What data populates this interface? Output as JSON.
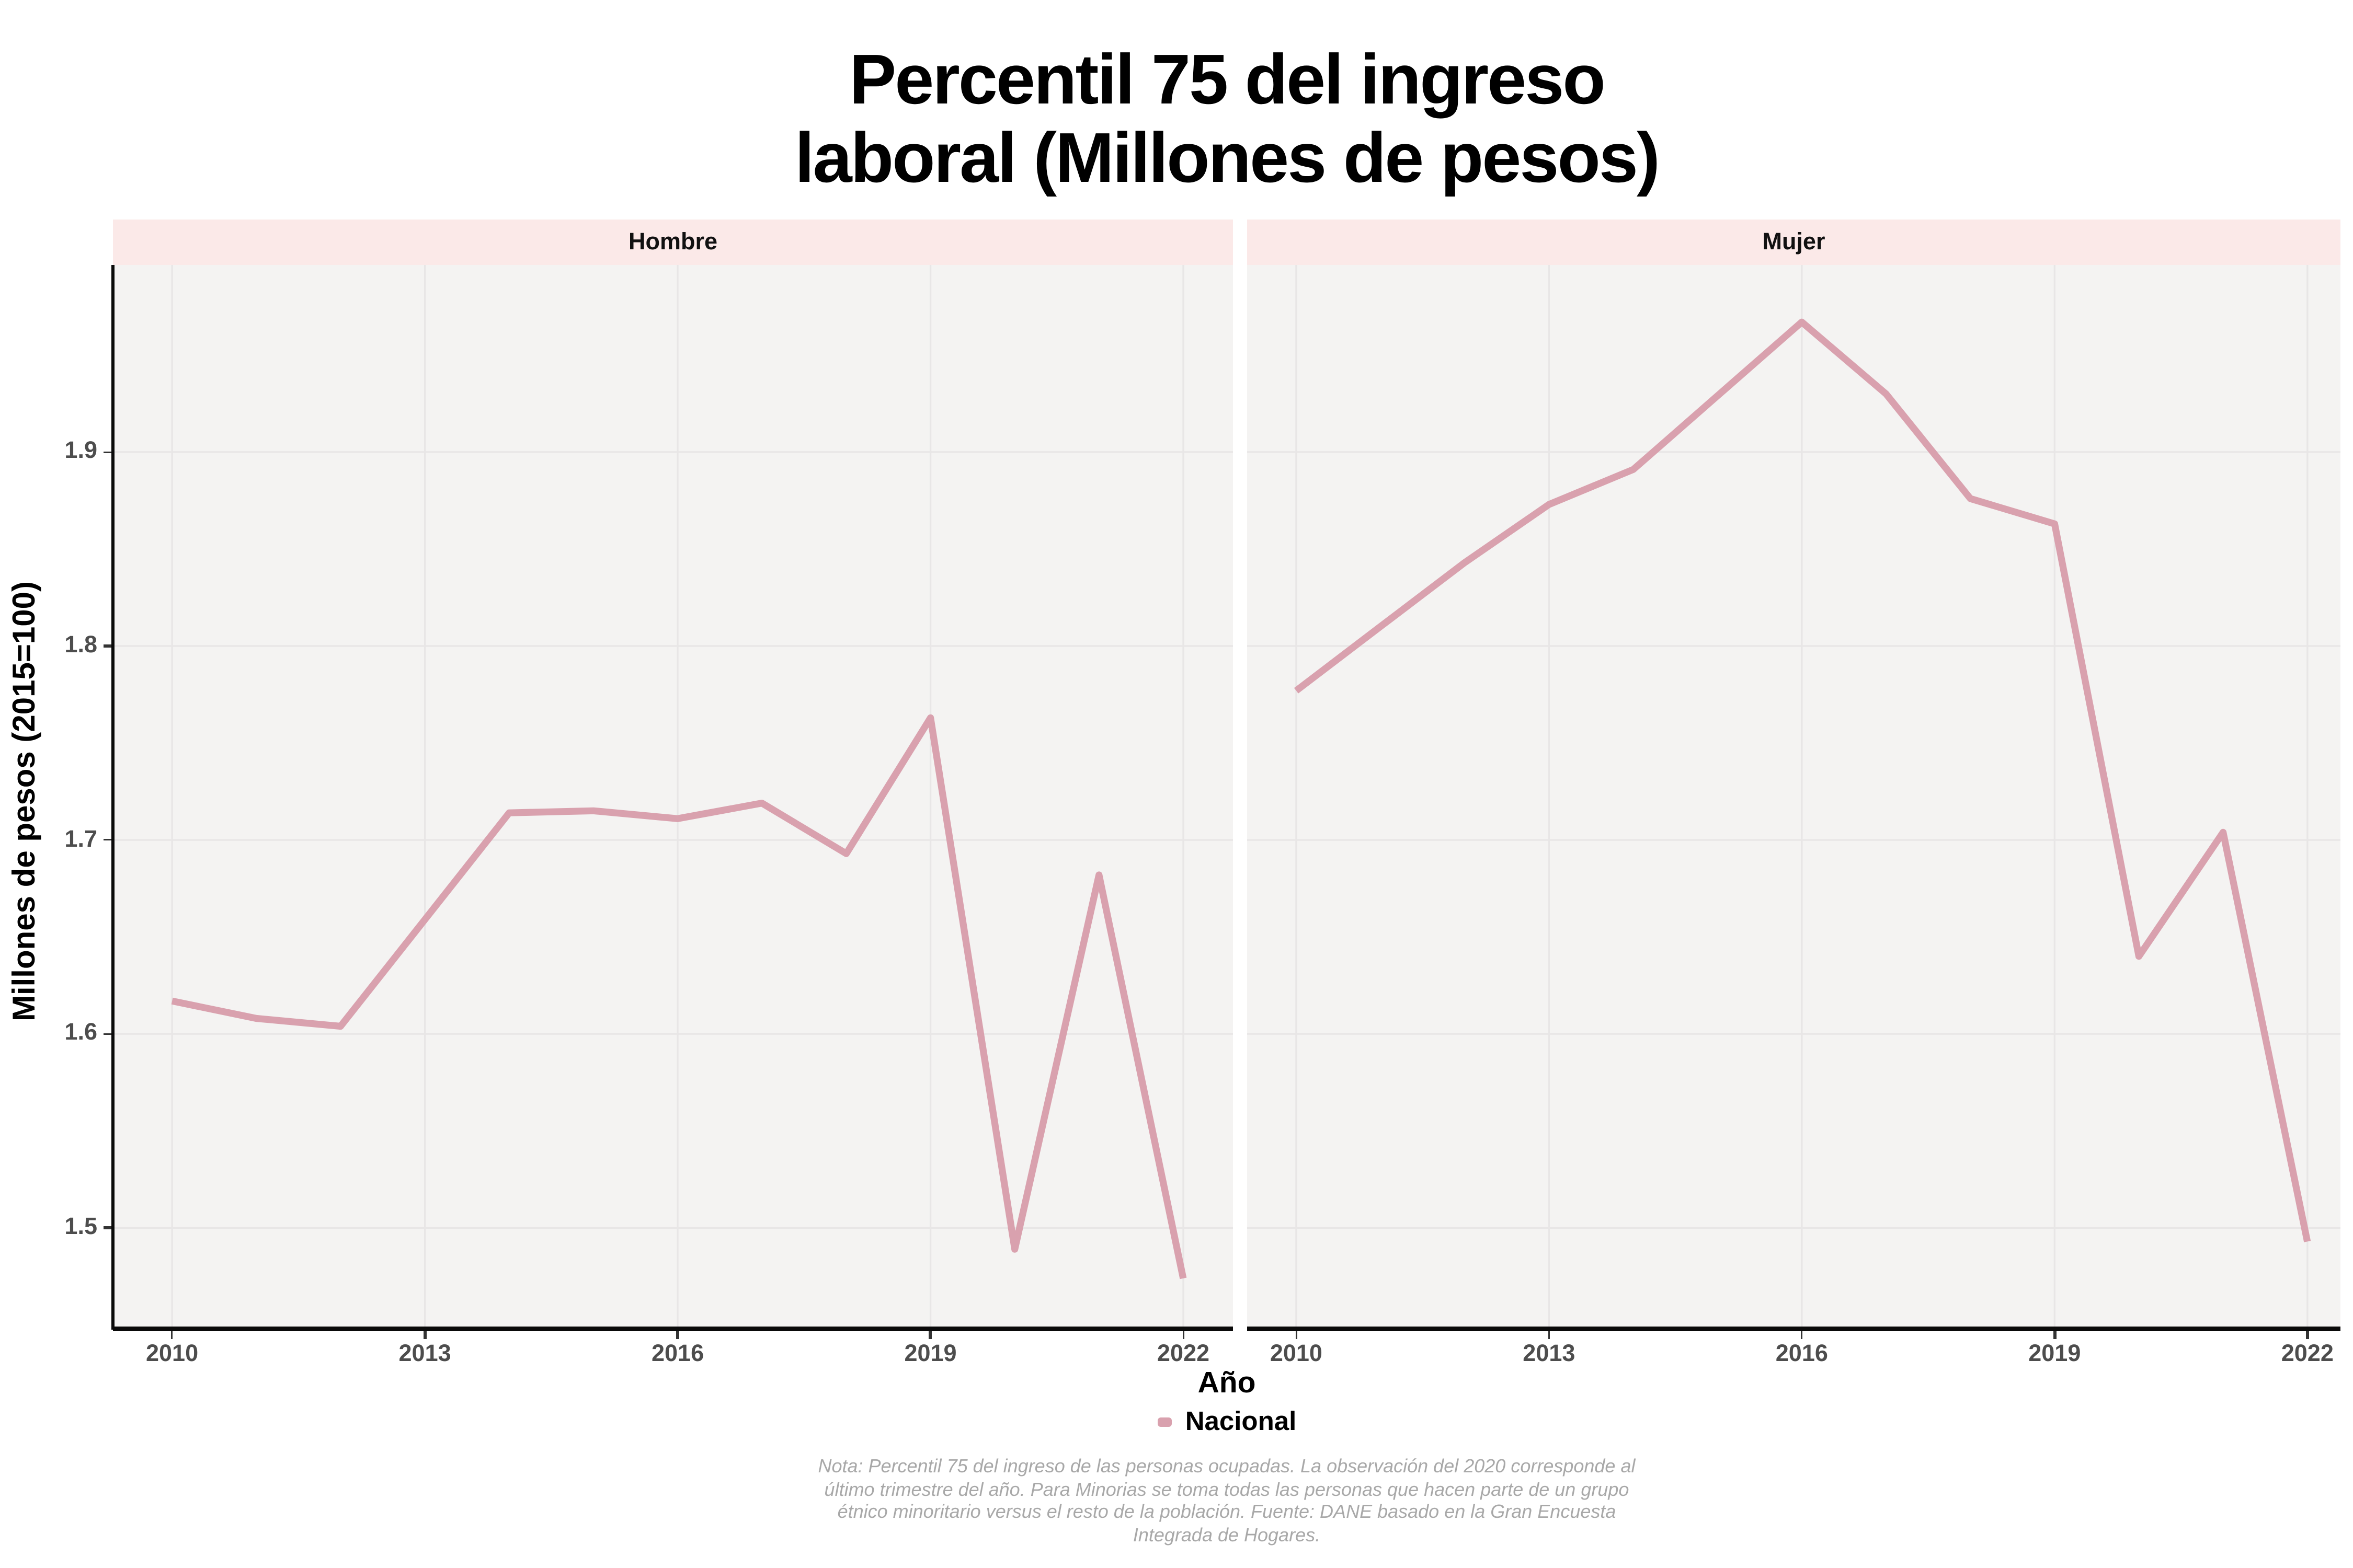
{
  "title": {
    "line1": "Percentil 75 del ingreso",
    "line2": "laboral (Millones de pesos)"
  },
  "axes": {
    "y_title": "Millones de pesos (2015=100)",
    "x_title": "Año",
    "y_tick_labels": [
      "1.9",
      "1.8",
      "1.7",
      "1.6",
      "1.5"
    ],
    "x_tick_labels": [
      "2010",
      "2013",
      "2016",
      "2019",
      "2022"
    ]
  },
  "legend": {
    "label": "Nacional"
  },
  "caption": {
    "line1": "Nota: Percentil 75 del ingreso de las personas ocupadas. La observación del 2020 corresponde al",
    "line2": "último trimestre del año. Para Minorias se toma todas las personas que hacen parte de un grupo",
    "line3": "étnico minoritario versus el resto de la población. Fuente: DANE basado en la Gran Encuesta",
    "line4": "Integrada de Hogares."
  },
  "colors": {
    "line": "#d9a1ae",
    "strip_bg": "#fbe9e8",
    "panel_bg": "#f4f3f2",
    "grid": "#e8e6e6",
    "axis_line": "#0a0a0a",
    "tick_text": "#4d4d4d",
    "caption_text": "#a8a8a8"
  },
  "chart_data": {
    "type": "line",
    "title": "Percentil 75 del ingreso laboral (Millones de pesos)",
    "xlabel": "Año",
    "ylabel": "Millones de pesos (2015=100)",
    "legend_entries": [
      "Nacional"
    ],
    "legend_position": "bottom",
    "grid": "major",
    "x_ticks": [
      2010,
      2013,
      2016,
      2019,
      2022
    ],
    "y_ticks": [
      1.5,
      1.6,
      1.7,
      1.8,
      1.9
    ],
    "xlim": [
      2009.45,
      2022.6
    ],
    "ylim": [
      1.447,
      1.996
    ],
    "x": [
      2010,
      2011,
      2012,
      2013,
      2014,
      2015,
      2016,
      2017,
      2018,
      2019,
      2020,
      2021,
      2022
    ],
    "facets": [
      {
        "label": "Hombre",
        "series": "Nacional",
        "values": [
          1.617,
          1.608,
          1.604,
          1.659,
          1.714,
          1.715,
          1.711,
          1.719,
          1.693,
          1.763,
          1.489,
          1.682,
          1.474
        ]
      },
      {
        "label": "Mujer",
        "series": "Nacional",
        "values": [
          1.777,
          1.81,
          1.843,
          1.873,
          1.891,
          1.929,
          1.967,
          1.93,
          1.876,
          1.863,
          1.64,
          1.704,
          1.493
        ]
      }
    ]
  }
}
